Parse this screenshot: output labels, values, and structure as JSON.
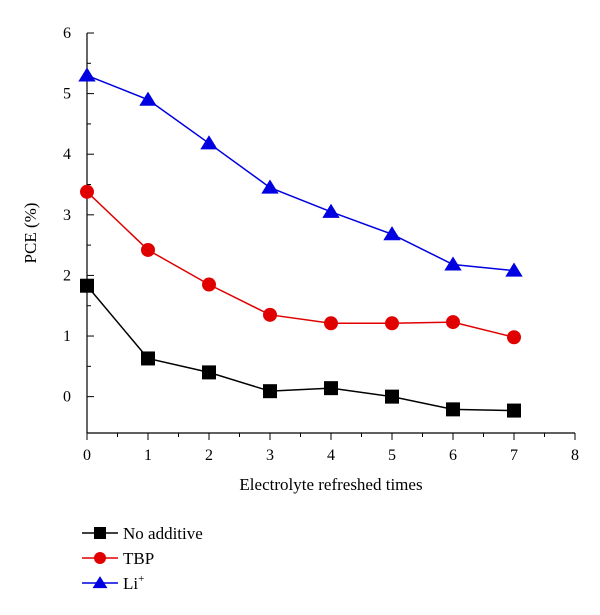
{
  "chart_data": {
    "type": "line",
    "title": "",
    "xlabel": "Electrolyte refreshed times",
    "ylabel": "PCE (%)",
    "xlim": [
      0,
      8
    ],
    "ylim": [
      -0.6,
      6
    ],
    "xticks": [
      "0",
      "1",
      "2",
      "3",
      "4",
      "5",
      "6",
      "7",
      "8"
    ],
    "yticks": [
      "0",
      "1",
      "2",
      "3",
      "4",
      "5",
      "6"
    ],
    "x": [
      0,
      1,
      2,
      3,
      4,
      5,
      6,
      7
    ],
    "grid": false,
    "legend_position": "bottom-left",
    "series": [
      {
        "name": "No additive",
        "name_sup": "",
        "color": "#000000",
        "marker": "square",
        "values": [
          1.83,
          0.63,
          0.4,
          0.09,
          0.14,
          0.0,
          -0.21,
          -0.23
        ]
      },
      {
        "name": "TBP",
        "name_sup": "",
        "color": "#e00000",
        "marker": "circle",
        "values": [
          3.38,
          2.42,
          1.85,
          1.35,
          1.21,
          1.21,
          1.23,
          0.98
        ]
      },
      {
        "name": "Li",
        "name_sup": "+",
        "color": "#0000e0",
        "marker": "triangle",
        "values": [
          5.3,
          4.9,
          4.18,
          3.45,
          3.05,
          2.68,
          2.18,
          2.08
        ]
      }
    ]
  }
}
